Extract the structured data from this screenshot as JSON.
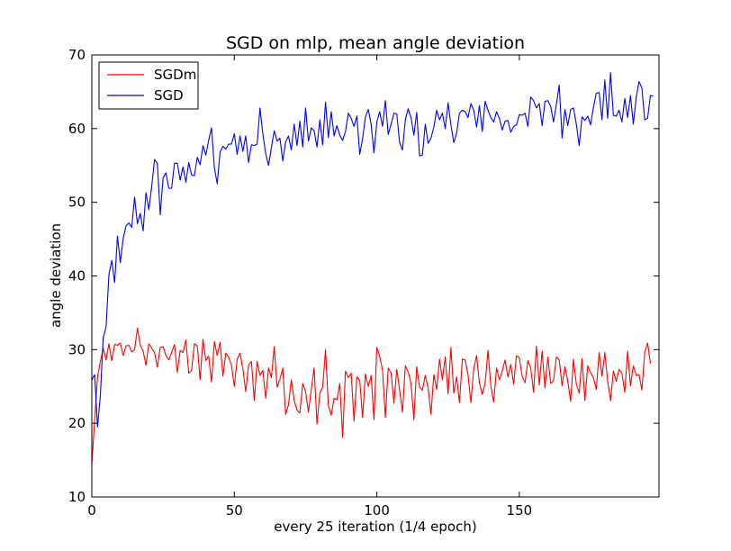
{
  "chart_data": {
    "type": "line",
    "title": "SGD on mlp, mean angle deviation",
    "xlabel": "every 25 iteration (1/4 epoch)",
    "ylabel": "angle deviation",
    "xlim": [
      0,
      199
    ],
    "ylim": [
      10,
      70
    ],
    "xticks": [
      "0",
      "50",
      "100",
      "150"
    ],
    "xtick_values": [
      0,
      50,
      100,
      150
    ],
    "yticks": [
      "10",
      "20",
      "30",
      "40",
      "50",
      "60",
      "70"
    ],
    "ytick_values": [
      10,
      20,
      30,
      40,
      50,
      60,
      70
    ],
    "grid": false,
    "legend_position": "top-left",
    "series": [
      {
        "name": "SGDm",
        "color": "#ff0000",
        "y": [
          14.4,
          20.5,
          26.3,
          28.4,
          30.2,
          28.6,
          30.8,
          28.5,
          30.7,
          30.6,
          30.9,
          29.2,
          30.5,
          30.6,
          29.7,
          30.0,
          32.9,
          30.6,
          29.8,
          27.9,
          30.8,
          30.2,
          29.6,
          27.6,
          30.3,
          30.4,
          29.2,
          28.6,
          29.6,
          30.7,
          26.9,
          29.9,
          29.6,
          31.3,
          26.8,
          27.2,
          30.8,
          30.5,
          25.9,
          31.4,
          28.5,
          29.1,
          25.6,
          31.1,
          29.2,
          31.0,
          26.4,
          29.5,
          29.0,
          27.9,
          25.0,
          28.7,
          29.5,
          27.4,
          24.3,
          27.9,
          28.4,
          23.1,
          28.4,
          26.5,
          27.2,
          23.4,
          27.5,
          26.2,
          30.4,
          24.9,
          26.0,
          27.5,
          21.2,
          22.5,
          25.9,
          23.1,
          21.8,
          21.4,
          25.4,
          24.3,
          21.5,
          24.6,
          27.5,
          19.9,
          24.1,
          24.9,
          30.0,
          22.4,
          21.1,
          23.4,
          23.2,
          25.4,
          18.1,
          27.1,
          26.2,
          26.8,
          20.3,
          26.3,
          25.8,
          20.8,
          26.7,
          25.0,
          26.5,
          20.5,
          30.3,
          29.1,
          27.2,
          20.8,
          27.5,
          26.9,
          22.7,
          27.3,
          24.5,
          21.5,
          27.8,
          27.0,
          25.4,
          20.5,
          27.7,
          24.9,
          24.5,
          26.5,
          24.8,
          21.2,
          26.6,
          24.6,
          28.7,
          25.9,
          29.0,
          24.0,
          30.3,
          24.1,
          26.3,
          22.8,
          28.7,
          28.6,
          26.6,
          22.8,
          27.4,
          29.2,
          25.5,
          23.9,
          25.4,
          29.9,
          25.1,
          22.9,
          27.5,
          25.9,
          27.1,
          28.6,
          26.3,
          28.0,
          25.3,
          29.2,
          28.9,
          26.4,
          25.5,
          28.5,
          27.5,
          24.2,
          30.5,
          25.2,
          29.8,
          24.8,
          29.0,
          25.4,
          25.8,
          29.0,
          28.6,
          25.1,
          27.7,
          25.7,
          23.0,
          28.7,
          25.3,
          24.1,
          28.8,
          23.1,
          27.8,
          26.9,
          26.2,
          24.6,
          29.6,
          26.4,
          29.6,
          25.7,
          23.1,
          27.1,
          25.7,
          27.3,
          26.8,
          24.2,
          29.8,
          25.1,
          27.8,
          26.5,
          26.6,
          24.5,
          29.6,
          30.9,
          28.1
        ]
      },
      {
        "name": "SGD",
        "color": "#0000ff",
        "y": [
          25.9,
          26.6,
          19.5,
          23.8,
          31.6,
          33.1,
          40.2,
          42.1,
          39.1,
          45.4,
          41.8,
          45.1,
          46.8,
          47.2,
          46.6,
          50.7,
          47.1,
          48.5,
          46.1,
          51.3,
          49.0,
          52.1,
          55.8,
          55.3,
          48.3,
          53.3,
          54.0,
          51.9,
          51.9,
          55.3,
          55.3,
          53.0,
          54.8,
          52.7,
          55.4,
          53.7,
          53.6,
          56.1,
          55.1,
          57.7,
          56.4,
          58.4,
          60.1,
          54.7,
          52.5,
          56.8,
          57.6,
          57.2,
          57.9,
          57.9,
          59.3,
          56.5,
          59.0,
          56.9,
          59.0,
          55.4,
          57.8,
          57.7,
          57.9,
          62.8,
          59.3,
          56.6,
          55.0,
          57.4,
          59.7,
          58.3,
          58.7,
          55.6,
          58.2,
          59.0,
          57.1,
          60.6,
          57.7,
          61.0,
          57.5,
          62.8,
          58.3,
          60.1,
          59.7,
          57.5,
          61.2,
          57.8,
          63.6,
          58.8,
          62.3,
          59.0,
          60.4,
          59.1,
          58.4,
          59.6,
          62.1,
          61.4,
          60.3,
          61.7,
          56.5,
          58.6,
          61.6,
          62.6,
          60.6,
          56.7,
          60.9,
          62.3,
          60.3,
          63.8,
          59.2,
          60.6,
          62.1,
          62.0,
          58.1,
          57.1,
          61.2,
          62.7,
          61.5,
          59.1,
          62.2,
          56.3,
          56.4,
          60.6,
          58.0,
          58.7,
          60.2,
          62.5,
          61.2,
          62.1,
          60.0,
          63.5,
          60.5,
          58.1,
          59.4,
          62.1,
          62.5,
          62.3,
          61.5,
          63.4,
          62.5,
          60.2,
          63.1,
          59.6,
          63.7,
          62.5,
          61.5,
          60.9,
          62.3,
          61.4,
          59.8,
          61.0,
          61.1,
          59.5,
          60.3,
          60.5,
          61.9,
          61.8,
          62.1,
          60.3,
          64.3,
          63.8,
          62.8,
          63.4,
          60.4,
          63.7,
          63.8,
          63.0,
          60.9,
          63.3,
          65.9,
          58.7,
          62.6,
          60.4,
          62.6,
          62.8,
          60.6,
          57.7,
          61.6,
          61.1,
          61.7,
          60.5,
          62.9,
          64.8,
          64.9,
          61.2,
          66.6,
          61.4,
          67.6,
          61.8,
          61.7,
          62.5,
          60.9,
          64.1,
          61.5,
          64.5,
          60.6,
          64.2,
          66.4,
          65.5,
          61.2,
          61.4,
          64.5,
          64.4
        ]
      }
    ]
  }
}
